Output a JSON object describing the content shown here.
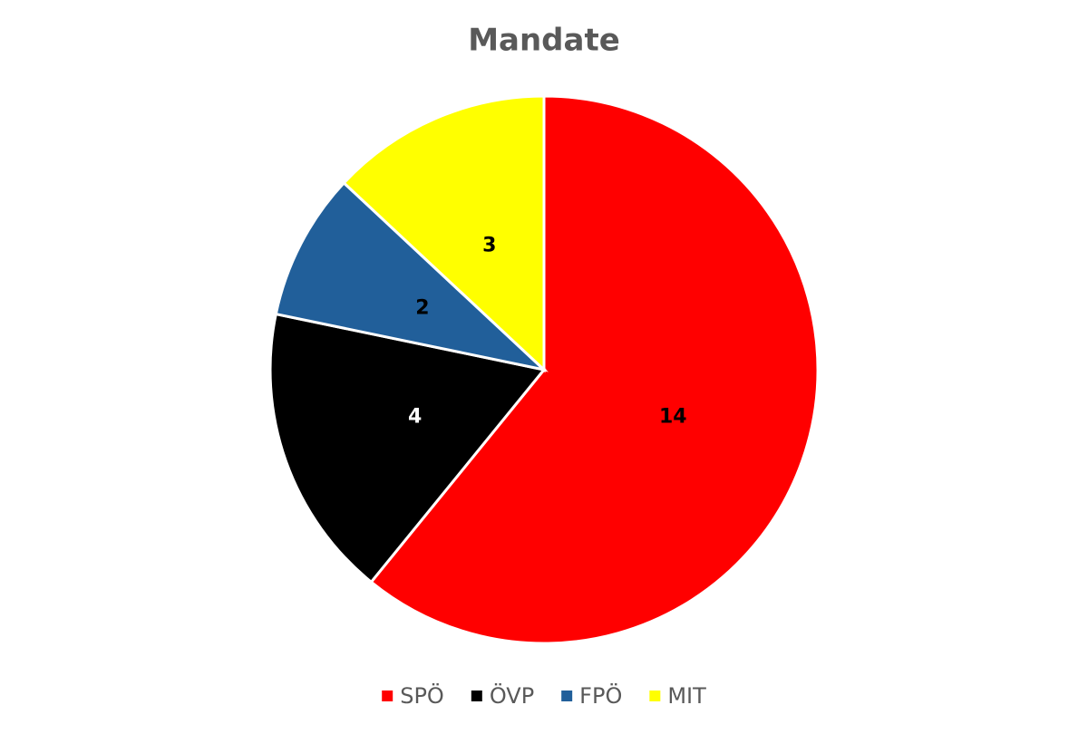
{
  "chart_data": {
    "type": "pie",
    "title": "Mandate",
    "categories": [
      "SPÖ",
      "ÖVP",
      "FPÖ",
      "MIT"
    ],
    "values": [
      14,
      4,
      2,
      3
    ],
    "colors": [
      "#ff0000",
      "#000000",
      "#215f9a",
      "#ffff00"
    ],
    "value_label_colors": [
      "#000000",
      "#ffffff",
      "#000000",
      "#000000"
    ],
    "legend": "bottom"
  }
}
